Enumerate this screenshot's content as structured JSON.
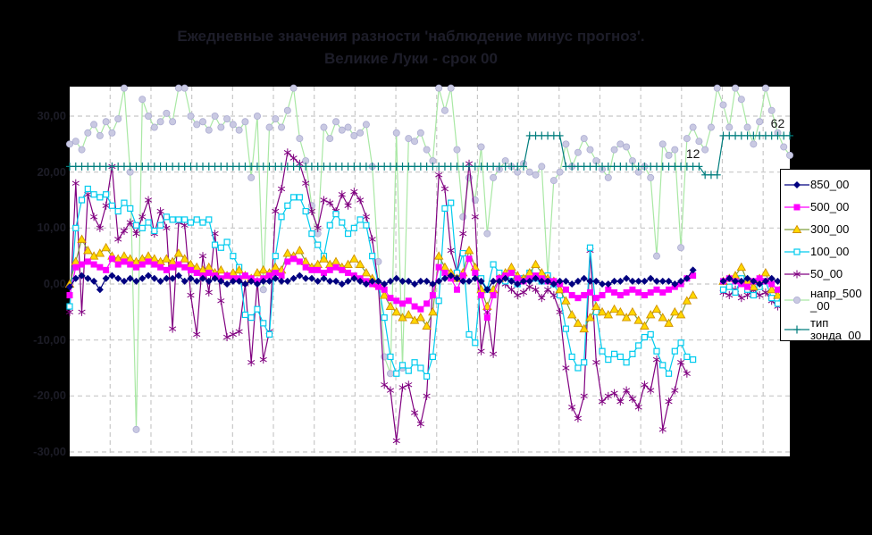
{
  "window": {
    "background": "#000000",
    "plot_background": "#ffffff",
    "grid_color": "#c8c8c8"
  },
  "title": {
    "line1": "Ежедневные значения разности 'наблюдение минус прогноз'.",
    "line2": "Великие Луки - срок 00"
  },
  "y_axis": {
    "tick_labels": [
      "30,00",
      "20,00",
      "10,00",
      "0,00",
      "-10,00",
      "-20,00",
      "-30,00"
    ],
    "tick_values": [
      30,
      20,
      10,
      0,
      -10,
      -20,
      -30
    ]
  },
  "annotations": [
    {
      "text": "12",
      "day": 103,
      "value": 23.3
    },
    {
      "text": "62",
      "day": 117,
      "value": 28.7
    }
  ],
  "legend": {
    "position": "right",
    "items": [
      {
        "label": "850_00",
        "lines": [
          "850_00"
        ]
      },
      {
        "label": "500_00",
        "lines": [
          "500_00"
        ]
      },
      {
        "label": "300_00",
        "lines": [
          "300_00"
        ]
      },
      {
        "label": "100_00",
        "lines": [
          "100_00"
        ]
      },
      {
        "label": "50_00",
        "lines": [
          "50_00"
        ]
      },
      {
        "label": "напр_500_00",
        "lines": [
          "напр_500",
          "_00"
        ]
      },
      {
        "label": "тип зонда_00",
        "lines": [
          "тип",
          "зонда_00"
        ]
      }
    ]
  },
  "chart_data": {
    "type": "line",
    "x": {
      "description": "daily values, tick labels not visible",
      "count": 120,
      "labels_visible": false
    },
    "ylim": [
      -30.8,
      35.3
    ],
    "grid": {
      "horizontal_step": 10,
      "vertical": "weekly dashed"
    },
    "legend_position": "right",
    "series": [
      {
        "name": "850_00",
        "line_color": "#000080",
        "marker": "diamond",
        "marker_fill": "#000080",
        "values": [
          -0.5,
          1,
          1.5,
          1,
          0.5,
          -1,
          1,
          1.5,
          1,
          0.5,
          1,
          0.5,
          1,
          1.5,
          1,
          0.5,
          1,
          1,
          1.5,
          0.5,
          1,
          0.5,
          1,
          0.5,
          1,
          0.5,
          0,
          0.5,
          0.5,
          0,
          0.5,
          0,
          0.5,
          0.5,
          1,
          0.5,
          0.5,
          1,
          1.5,
          1,
          1,
          0.5,
          1,
          0.5,
          0.5,
          0,
          0.5,
          1,
          0.5,
          0,
          0.5,
          0.5,
          0,
          0.5,
          1,
          0.5,
          0.5,
          0,
          0.5,
          0.5,
          0,
          0.5,
          1,
          1.5,
          1,
          0.5,
          0.5,
          1,
          0.5,
          -1,
          0.5,
          0.5,
          1,
          0.5,
          0,
          0.5,
          0.5,
          1,
          0.5,
          0.5,
          0,
          0.5,
          0.5,
          0,
          0.5,
          1,
          0.5,
          0.5,
          0,
          0,
          0.5,
          0.5,
          1,
          0.5,
          0.5,
          0.5,
          1,
          0.5,
          0.5,
          0.5,
          0,
          0.5,
          1,
          2.5,
          null,
          null,
          null,
          null,
          0.5,
          1,
          0.5,
          0.5,
          1,
          0.5,
          0,
          0.5,
          1,
          0.5,
          0.5,
          0
        ]
      },
      {
        "name": "500_00",
        "line_color": "#ff00ff",
        "marker": "square",
        "marker_fill": "#ff00ff",
        "values": [
          -2,
          3,
          3.5,
          4,
          3.5,
          3,
          2.5,
          4.5,
          3.5,
          4,
          3.5,
          3,
          3.5,
          4,
          3.5,
          3,
          2.5,
          3,
          3.5,
          3,
          2.5,
          2,
          1.5,
          2,
          1.5,
          1,
          1.5,
          1,
          1,
          1.5,
          1,
          0.5,
          1,
          1.5,
          2,
          1.5,
          4,
          4.5,
          4,
          3,
          2.5,
          2.5,
          2,
          2.5,
          3,
          2.5,
          2,
          1.5,
          1,
          0.5,
          0,
          -0.5,
          -1,
          -2.5,
          -3,
          -3.5,
          -3,
          -4,
          -4.5,
          -3.5,
          -2,
          3,
          2,
          1,
          -1,
          1.5,
          4.5,
          2,
          -2,
          -6,
          -2,
          1,
          1.5,
          2,
          1,
          0.5,
          1,
          1.5,
          1,
          0.5,
          0.5,
          0,
          -1,
          -2,
          -2.5,
          -2,
          -1.5,
          -2.5,
          -2,
          -1,
          -1.5,
          -2,
          -1.5,
          -1,
          -1.5,
          -2,
          -1.5,
          -1,
          -1.5,
          -1,
          -0.5,
          0,
          1,
          1.5,
          null,
          null,
          null,
          null,
          0.5,
          1,
          0.5,
          0,
          -0.5,
          0.5,
          1,
          0.5,
          0,
          -1,
          0.5,
          0
        ]
      },
      {
        "name": "300_00",
        "line_color": "#7f9f3f",
        "marker": "triangle",
        "marker_fill": "#ffd800",
        "marker_stroke": "#d09000",
        "values": [
          0,
          4,
          8,
          6,
          5,
          5.5,
          6.5,
          5,
          4.5,
          5,
          4.5,
          4,
          4.5,
          5,
          4.5,
          4,
          4.5,
          4,
          5.5,
          4.5,
          3.5,
          3,
          2.5,
          3,
          2,
          2.5,
          1.5,
          2,
          2.5,
          1.5,
          1,
          2,
          2.5,
          2,
          3,
          2.5,
          5.5,
          5,
          6,
          4,
          3,
          3.5,
          4.5,
          3.5,
          4,
          3,
          3.5,
          4.5,
          3.5,
          2,
          1,
          0,
          -2,
          -4,
          -5,
          -6,
          -5.5,
          -6.5,
          -6,
          -7.5,
          -5,
          5,
          3,
          2,
          1,
          2,
          6,
          3,
          -1,
          -4,
          -1,
          1,
          2,
          3,
          1.5,
          1,
          2,
          3.5,
          2,
          1,
          0.5,
          -1,
          -3,
          -5.5,
          -7,
          -8,
          -6,
          -4,
          -5,
          -5.5,
          -4.5,
          -5,
          -6,
          -5,
          -6.5,
          -7.5,
          -5.5,
          -4.5,
          -6,
          -7,
          -5,
          -5.5,
          -3,
          -2,
          null,
          null,
          null,
          null,
          0.5,
          1,
          1.5,
          3,
          0.5,
          -0.5,
          1,
          2,
          -1,
          -2,
          1,
          -1
        ]
      },
      {
        "name": "100_00",
        "line_color": "#00cbee",
        "marker": "open-square",
        "marker_fill": "#ffffff",
        "marker_stroke": "#00cbee",
        "values": [
          -4,
          10,
          15,
          17,
          16,
          15.5,
          16,
          14,
          13,
          14.5,
          13.5,
          10.5,
          10,
          11,
          9.5,
          10.5,
          12,
          11.5,
          11.5,
          11.5,
          11,
          11.5,
          11,
          11.5,
          7,
          6.5,
          7.5,
          5,
          3,
          -5.5,
          -6,
          -4.5,
          -7,
          -9,
          5,
          12,
          14,
          15.5,
          15.5,
          13,
          9,
          7,
          5,
          10.5,
          12.5,
          11,
          9,
          10,
          11.5,
          10.5,
          5,
          0,
          -6,
          -13,
          -16,
          -14.5,
          -15.5,
          -14,
          -15,
          -16.5,
          -13,
          -3,
          13.5,
          14.5,
          2,
          5.5,
          -9,
          -10.5,
          1,
          -1,
          3.5,
          2,
          0.5,
          1.5,
          0,
          1,
          2,
          1,
          0.5,
          1.5,
          0,
          -2,
          -8,
          -13,
          -15,
          -14,
          6.5,
          -5,
          -12,
          -13.5,
          -12.5,
          -13,
          -14,
          -12.5,
          -11,
          -9.5,
          -9,
          -12,
          -14.5,
          -16,
          -12,
          -10.5,
          -13,
          -13.5,
          null,
          null,
          null,
          null,
          -1,
          -0.5,
          -1.5,
          1,
          -1,
          -2,
          -0.5,
          0.5,
          -2.5,
          -3.5,
          -1,
          -2
        ]
      },
      {
        "name": "50_00",
        "line_color": "#800080",
        "marker": "asterisk",
        "values": [
          -5,
          18,
          -5,
          16,
          12,
          10,
          14,
          21,
          8,
          9.5,
          11,
          9,
          12,
          15,
          9,
          13,
          10,
          -8,
          11,
          10.5,
          -2,
          -9,
          5,
          -1.5,
          9,
          -3,
          -9.5,
          -9,
          -8.5,
          0,
          -14,
          0.5,
          -13.5,
          -8.5,
          13,
          17,
          23.5,
          22.5,
          21.5,
          18,
          13,
          10,
          15,
          14.5,
          13,
          16,
          14,
          16.5,
          15,
          12,
          8,
          0,
          -18,
          -19,
          -28,
          -18.5,
          -18,
          -23,
          -25,
          -20,
          0,
          19.5,
          17,
          6,
          2,
          9,
          21.5,
          12,
          -12,
          -5,
          -12.5,
          1,
          0,
          -1,
          -2,
          -1.5,
          -0.5,
          -1,
          -2.5,
          -1,
          -2,
          -5,
          -15,
          -22,
          -24,
          -20,
          6,
          -14,
          -21,
          -20,
          -19.5,
          -21,
          -19,
          -20.5,
          -22,
          -18,
          -19,
          -13.5,
          -26,
          -21,
          -19,
          -14,
          -16,
          null,
          null,
          null,
          null,
          null,
          -1.5,
          -2,
          -1,
          -2.5,
          -2,
          -1,
          -2,
          -1.5,
          -3,
          -4,
          -2,
          -3
        ]
      },
      {
        "name": "напр_500_00",
        "line_color": "#a9e8a4",
        "marker": "circle",
        "marker_fill": "#c9c9e2",
        "marker_stroke": "#adadd2",
        "values": [
          25,
          25.5,
          24,
          27,
          28.5,
          26.5,
          29,
          27,
          29.5,
          35,
          20,
          -26,
          33,
          30,
          28,
          29,
          30.5,
          29,
          35,
          35,
          30,
          28.5,
          29,
          27.5,
          30,
          28,
          29.5,
          28.5,
          27.5,
          29,
          19,
          30,
          -1,
          28,
          29.5,
          28,
          31,
          35,
          26,
          22,
          14,
          9,
          28,
          26,
          29,
          27.5,
          28,
          26.5,
          27,
          28.5,
          21,
          4,
          -13,
          -16,
          27,
          -15,
          26,
          25.5,
          27,
          24,
          22,
          35,
          31,
          35,
          24,
          12,
          19,
          15,
          24.5,
          9,
          19,
          20.5,
          22,
          21,
          20,
          21.5,
          20,
          19.5,
          21,
          1.5,
          18.5,
          20,
          25,
          21,
          23.5,
          26,
          24,
          22,
          20.5,
          19,
          24,
          25,
          24.5,
          22,
          20,
          21,
          19,
          5,
          25,
          23,
          24,
          6.5,
          26,
          28,
          25.5,
          24,
          28,
          35,
          32,
          28,
          35,
          33,
          28,
          25,
          29,
          35,
          31,
          27,
          24.5,
          23
        ]
      },
      {
        "name": "тип зонда_00",
        "line_color": "#007d7d",
        "marker": "plus",
        "values": [
          21,
          21,
          21,
          21,
          21,
          21,
          21,
          21,
          21,
          21,
          21,
          21,
          21,
          21,
          21,
          21,
          21,
          21,
          21,
          21,
          21,
          21,
          21,
          21,
          21,
          21,
          21,
          21,
          21,
          21,
          21,
          21,
          21,
          21,
          21,
          21,
          21,
          21,
          21,
          21,
          21,
          21,
          21,
          21,
          21,
          21,
          21,
          21,
          21,
          21,
          21,
          21,
          21,
          21,
          21,
          21,
          21,
          21,
          21,
          21,
          21,
          21,
          21,
          21,
          21,
          21,
          21,
          21,
          21,
          21,
          21,
          21,
          21,
          21,
          21,
          21,
          26.5,
          26.5,
          26.5,
          26.5,
          26.5,
          26.5,
          21,
          21,
          21,
          21,
          21,
          21,
          21,
          21,
          21,
          21,
          21,
          21,
          21,
          21,
          21,
          21,
          21,
          21,
          21,
          21,
          21,
          21,
          21,
          19.5,
          19.5,
          19.5,
          26.5,
          26.5,
          26.5,
          26.5,
          26.5,
          26.5,
          26.5,
          26.5,
          26.5,
          26.5,
          26.5,
          26.5
        ]
      }
    ]
  }
}
